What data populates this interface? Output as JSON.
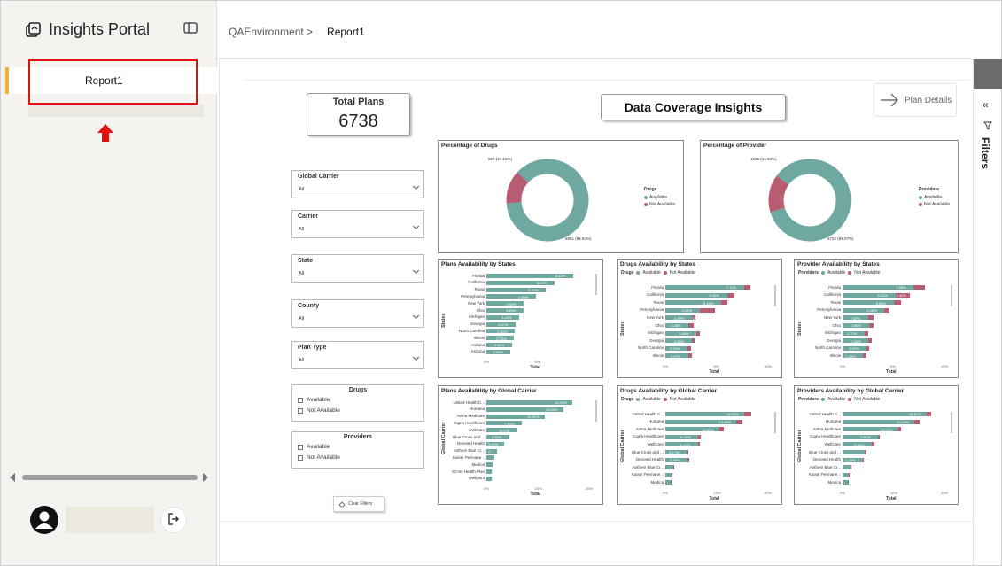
{
  "app": {
    "title": "Insights Portal"
  },
  "sidebar": {
    "items": [
      {
        "label": "Report1"
      }
    ]
  },
  "breadcrumb": {
    "environment": "QAEnvironment >",
    "page": "Report1"
  },
  "report": {
    "title": "Data Coverage Insights",
    "total_plans": {
      "label": "Total Plans",
      "value": "6738"
    },
    "plan_details_label": "Plan Details",
    "clear_filters_label": "Clear Filters",
    "filters_pane_label": "Filters",
    "slicers": [
      {
        "title": "Global Carrier",
        "value": "All"
      },
      {
        "title": "Carrier",
        "value": "All"
      },
      {
        "title": "State",
        "value": "All"
      },
      {
        "title": "County",
        "value": "All"
      },
      {
        "title": "Plan Type",
        "value": "All"
      }
    ],
    "checkbox_groups": [
      {
        "title": "Drugs",
        "options": [
          "Available",
          "Not Available"
        ]
      },
      {
        "title": "Providers",
        "options": [
          "Available",
          "Not Available"
        ]
      }
    ]
  },
  "colors": {
    "available": "#6fa8a0",
    "not_available": "#b85c72"
  },
  "chart_data": [
    {
      "type": "pie",
      "title": "Percentage of Drugs",
      "legend_title": "Drugs",
      "legend": [
        "Available",
        "Not Available"
      ],
      "values": [
        5851,
        887
      ],
      "data_labels": [
        "5851 (86.84%)",
        "887 (13.16%)"
      ]
    },
    {
      "type": "pie",
      "title": "Percentage of Provider",
      "legend_title": "Providers",
      "legend": [
        "Available",
        "Not Available"
      ],
      "values": [
        5732,
        1006
      ],
      "data_labels": [
        "5732 (85.07%)",
        "1006 (14.93%)"
      ]
    },
    {
      "type": "bar",
      "title": "Plans Availability by States",
      "ylabel": "States",
      "xlabel": "Total",
      "xticks": [
        "0%",
        "5%"
      ],
      "xlim": [
        0,
        10
      ],
      "categories": [
        "Florida",
        "California",
        "Texas",
        "Pennsylvania",
        "New York",
        "Ohio",
        "Michigan",
        "Georgia",
        "North Carolina",
        "Illinois",
        "Indiana",
        "Arizona"
      ],
      "values": [
        8.52,
        6.67,
        5.84,
        4.9,
        3.68,
        3.63,
        3.24,
        2.87,
        2.81,
        2.73,
        2.51,
        2.39
      ],
      "labels": [
        "8.52%",
        "6.67%",
        "5.84%",
        "4.90%",
        "3.68%",
        "3.63%",
        "3.24%",
        "2.87%",
        "2.81%",
        "2.73%",
        "2.51%",
        "2.39%"
      ]
    },
    {
      "type": "bar",
      "title": "Drugs Availability by States",
      "legend_title": "Drugs",
      "legend": [
        "Available",
        "Not Available"
      ],
      "ylabel": "States",
      "xlabel": "Total",
      "xticks": [
        "0%",
        "5%",
        "10%"
      ],
      "xlim": [
        0,
        10
      ],
      "categories": [
        "Florida",
        "California",
        "Texas",
        "Pennsylvania",
        "New York",
        "Ohio",
        "Michigan",
        "Georgia",
        "North Carolina",
        "Illinois"
      ],
      "series": [
        {
          "name": "Available",
          "values": [
            7.72,
            6.05,
            5.48,
            3.35,
            2.59,
            2.28,
            3.06,
            2.6,
            2.2,
            2.27
          ]
        },
        {
          "name": "Not Available",
          "values": [
            0.6,
            0.7,
            0.6,
            1.55,
            0.4,
            0.5,
            0.3,
            0.3,
            0.3,
            0.3
          ]
        }
      ],
      "labels": [
        "7.72%",
        "6.05%",
        "5.48%",
        "3.35%",
        "2.59%",
        "2.28%",
        "3.06%",
        "2.60%",
        "2.20%",
        "2.27%"
      ],
      "extra_labels": [
        "1.55%"
      ]
    },
    {
      "type": "bar",
      "title": "Provider Availability by States",
      "legend_title": "Providers",
      "legend": [
        "Available",
        "Not Available"
      ],
      "ylabel": "States",
      "xlabel": "Total",
      "xticks": [
        "0%",
        "5%",
        "10%"
      ],
      "xlim": [
        0,
        10
      ],
      "categories": [
        "Florida",
        "California",
        "Texas",
        "Pennsylvania",
        "New York",
        "Ohio",
        "Michigan",
        "Georgia",
        "North Carolina",
        "Illinois"
      ],
      "series": [
        {
          "name": "Available",
          "values": [
            7.05,
            5.23,
            5.05,
            4.16,
            2.5,
            2.6,
            2.17,
            2.56,
            2.37,
            2.05
          ]
        },
        {
          "name": "Not Available",
          "values": [
            1.1,
            1.44,
            0.7,
            0.5,
            0.6,
            0.5,
            0.4,
            0.3,
            0.3,
            0.3
          ]
        }
      ],
      "labels": [
        "7.05%",
        "5.23%",
        "5.05%",
        "4.16%",
        "2.50%",
        "2.60%",
        "2.17%",
        "2.56%",
        "2.37%",
        "2.05%"
      ],
      "extra_labels": [
        "1.44%"
      ]
    },
    {
      "type": "bar",
      "title": "Plans Availability by Global Carrier",
      "ylabel": "Global Carrier",
      "xlabel": "Total",
      "xticks": [
        "0%",
        "10%",
        "20%"
      ],
      "xlim": [
        0,
        20
      ],
      "categories": [
        "United Health C...",
        "Humana",
        "Aetna Medicare",
        "Cigna Healthcare",
        "WellCare",
        "Blue Cross and ...",
        "Devoted Health",
        "Anthem Blue Cr...",
        "Kaiser Permane...",
        "Medica",
        "SCAN Health Plan",
        "Wellpoint"
      ],
      "values": [
        16.92,
        15.08,
        11.52,
        7.01,
        6.07,
        4.53,
        3.49,
        2.1,
        1.5,
        1.3,
        1.1,
        1.0
      ],
      "labels": [
        "16.92%",
        "15.08%",
        "11.52%",
        "7.01%",
        "6.07%",
        "4.53%",
        "3.49%",
        "2...",
        "",
        "",
        "",
        ""
      ]
    },
    {
      "type": "bar",
      "title": "Drugs Availability by Global Carrier",
      "legend_title": "Drugs",
      "legend": [
        "Available",
        "Not Available"
      ],
      "ylabel": "Global Carrier",
      "xlabel": "Total",
      "xticks": [
        "0%",
        "10%",
        "20%"
      ],
      "xlim": [
        0,
        20
      ],
      "categories": [
        "United Health C...",
        "Humana",
        "Aetna Medicare",
        "Cigna Healthcare",
        "WellCare",
        "Blue Cross and ...",
        "Devoted Health",
        "Anthem Blue Cr...",
        "Kaiser Permane...",
        "Medica"
      ],
      "series": [
        {
          "name": "Available",
          "values": [
            15.51,
            13.99,
            10.68,
            6.46,
            6.43,
            4.17,
            4.35,
            1.5,
            1.2,
            1.0
          ]
        },
        {
          "name": "Not Available",
          "values": [
            1.4,
            1.1,
            0.8,
            0.5,
            0.4,
            0.4,
            0.3,
            0.3,
            0.2,
            0.2
          ]
        }
      ],
      "labels": [
        "15.51%",
        "13.99%",
        "10.68%",
        "6.46%",
        "6.43%",
        "4.17%",
        "4.35%",
        "",
        "",
        ""
      ]
    },
    {
      "type": "bar",
      "title": "Providers Availability by Global Carrier",
      "legend_title": "Providers",
      "legend": [
        "Available",
        "Not Available"
      ],
      "ylabel": "Global Carrier",
      "xlabel": "Total",
      "xticks": [
        "0%",
        "10%",
        "20%"
      ],
      "xlim": [
        0,
        20
      ],
      "categories": [
        "United Health C...",
        "Humana",
        "Aetna Medicare",
        "Cigna Healthcare",
        "WellCare",
        "Blue Cross and ...",
        "Devoted Health",
        "Anthem Blue Cr...",
        "Kaiser Permane...",
        "Medica"
      ],
      "series": [
        {
          "name": "Available",
          "values": [
            16.67,
            14.29,
            11.09,
            7.01,
            5.86,
            4.3,
            4.05,
            1.5,
            1.2,
            1.0
          ]
        },
        {
          "name": "Not Available",
          "values": [
            0.8,
            0.9,
            0.5,
            0.3,
            0.4,
            0.4,
            0.2,
            0.2,
            0.2,
            0.2
          ]
        }
      ],
      "labels": [
        "16.67%",
        "14.29%",
        "11.09%",
        "7.01%",
        "5.86%",
        "",
        "4.05%",
        "",
        "",
        ""
      ]
    }
  ]
}
